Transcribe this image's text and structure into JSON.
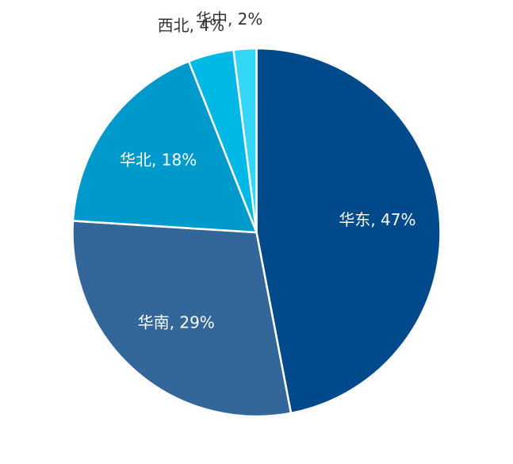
{
  "chart_data": {
    "type": "pie",
    "categories": [
      "华东",
      "华南",
      "华北",
      "西北",
      "华中"
    ],
    "values": [
      47,
      29,
      18,
      4,
      2
    ],
    "labels": [
      "华东, 47%",
      "华南, 29%",
      "华北, 18%",
      "西北, 4%",
      "华中, 2%"
    ],
    "colors": [
      "#004a8c",
      "#336699",
      "#0099cc",
      "#00b8e6",
      "#33d6f5"
    ],
    "label_colors": [
      "#ffffff",
      "#ffffff",
      "#ffffff",
      "#333333",
      "#333333"
    ],
    "label_positions": [
      "inside",
      "inside",
      "inside",
      "outside",
      "outside"
    ],
    "title": "",
    "legend": false
  }
}
